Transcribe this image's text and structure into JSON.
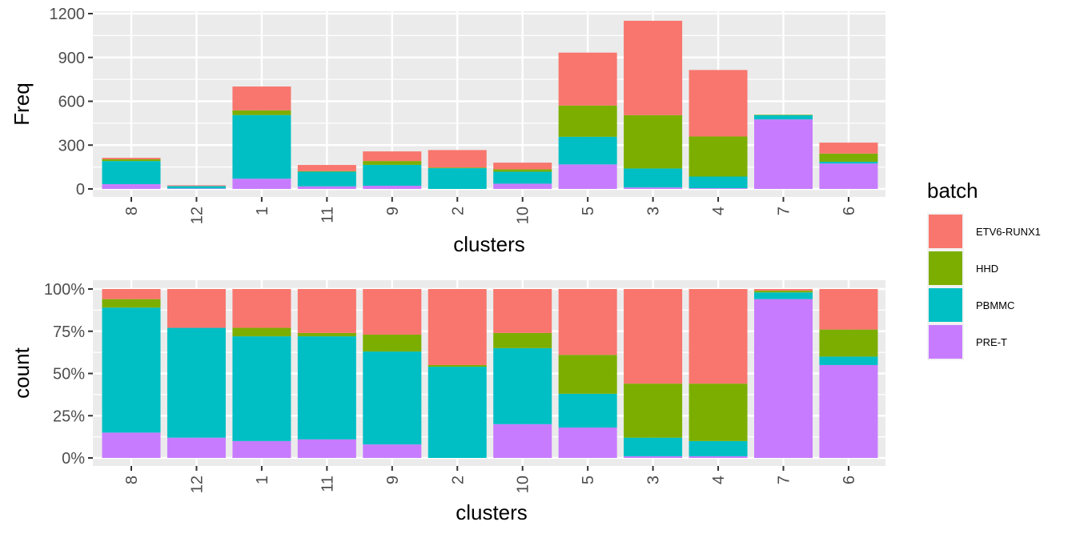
{
  "chart_data": [
    {
      "type": "bar",
      "stacked": true,
      "categories": [
        "8",
        "12",
        "1",
        "11",
        "9",
        "2",
        "10",
        "5",
        "3",
        "4",
        "7",
        "6"
      ],
      "xlabel": "clusters",
      "ylabel": "Freq",
      "ylim": [
        0,
        1200
      ],
      "yticks": [
        "0",
        "300",
        "600",
        "900",
        "1200"
      ],
      "grid": true,
      "series": [
        {
          "name": "PRE-T",
          "values": [
            33,
            3,
            70,
            18,
            22,
            0,
            36,
            168,
            10,
            5,
            476,
            174
          ]
        },
        {
          "name": "PBMMC",
          "values": [
            158,
            17,
            436,
            100,
            143,
            142,
            82,
            189,
            130,
            80,
            29,
            12
          ]
        },
        {
          "name": "HHD",
          "values": [
            12,
            0,
            32,
            4,
            26,
            4,
            16,
            214,
            365,
            274,
            3,
            56
          ]
        },
        {
          "name": "ETV6-RUNX1",
          "values": [
            10,
            5,
            163,
            42,
            66,
            120,
            46,
            362,
            646,
            455,
            0,
            75
          ]
        }
      ]
    },
    {
      "type": "bar",
      "stacked": true,
      "normalized": true,
      "categories": [
        "8",
        "12",
        "1",
        "11",
        "9",
        "2",
        "10",
        "5",
        "3",
        "4",
        "7",
        "6"
      ],
      "xlabel": "clusters",
      "ylabel": "count",
      "ylim": [
        0,
        1
      ],
      "yticks": [
        "0%",
        "25%",
        "50%",
        "75%",
        "100%"
      ],
      "grid": true,
      "series": [
        {
          "name": "PRE-T",
          "values": [
            0.15,
            0.12,
            0.1,
            0.11,
            0.08,
            0.0,
            0.2,
            0.18,
            0.01,
            0.01,
            0.94,
            0.55
          ]
        },
        {
          "name": "PBMMC",
          "values": [
            0.74,
            0.65,
            0.62,
            0.61,
            0.55,
            0.54,
            0.45,
            0.2,
            0.11,
            0.09,
            0.04,
            0.05
          ]
        },
        {
          "name": "HHD",
          "values": [
            0.05,
            0.0,
            0.05,
            0.02,
            0.1,
            0.01,
            0.09,
            0.23,
            0.32,
            0.34,
            0.01,
            0.16
          ]
        },
        {
          "name": "ETV6-RUNX1",
          "values": [
            0.06,
            0.23,
            0.23,
            0.26,
            0.27,
            0.45,
            0.26,
            0.39,
            0.56,
            0.56,
            0.01,
            0.24
          ]
        }
      ]
    }
  ],
  "legend": {
    "title": "batch",
    "placement": "right",
    "items": [
      {
        "label": "ETV6-RUNX1",
        "color": "#F8766D"
      },
      {
        "label": "HHD",
        "color": "#7CAE00"
      },
      {
        "label": "PBMMC",
        "color": "#00BFC4"
      },
      {
        "label": "PRE-T",
        "color": "#C77CFF"
      }
    ]
  },
  "colors": {
    "ETV6-RUNX1": "#F8766D",
    "HHD": "#7CAE00",
    "PBMMC": "#00BFC4",
    "PRE-T": "#C77CFF",
    "panel_bg": "#EBEBEB",
    "grid": "#FFFFFF"
  }
}
